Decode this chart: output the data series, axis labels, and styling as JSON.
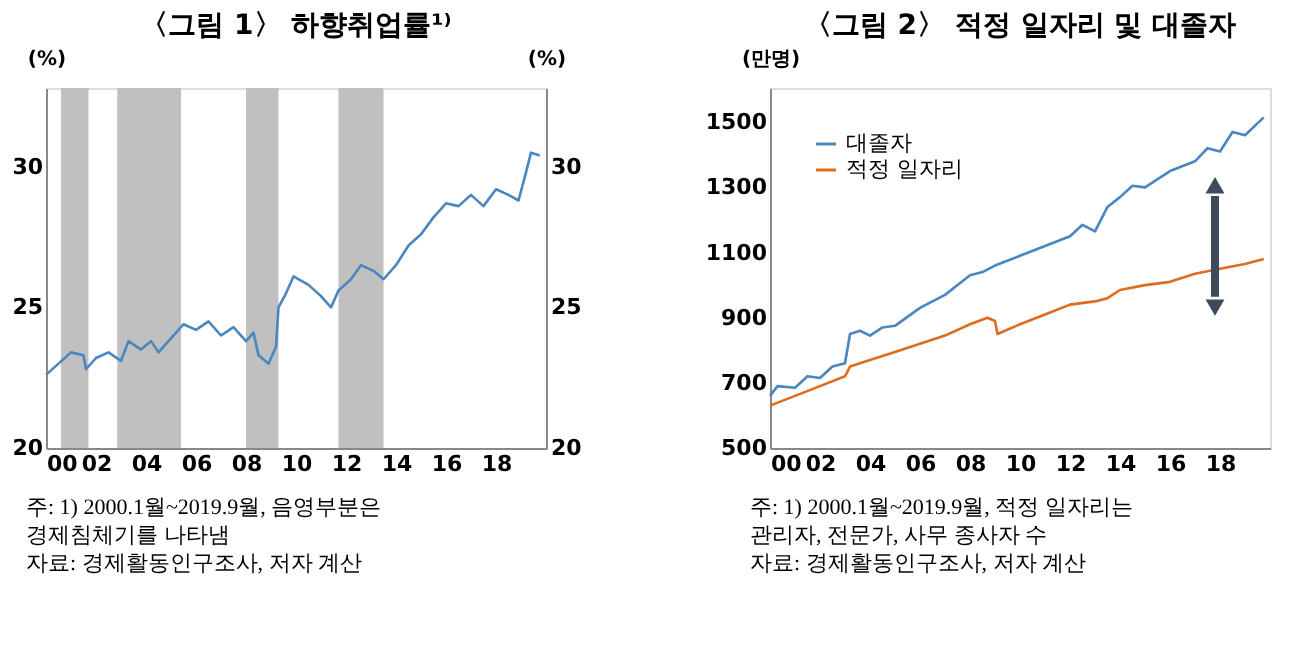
{
  "chart_data": [
    {
      "type": "line",
      "title": "〈그림 1〉 하향취업률¹⁾",
      "ylabel": "(%)",
      "y2label": "(%)",
      "series": [
        {
          "color": "#4a86c0",
          "x": [
            2000,
            2000.5,
            2001,
            2001.5,
            2001.6,
            2002,
            2002.5,
            2003,
            2003.3,
            2003.8,
            2004.2,
            2004.5,
            2005,
            2005.5,
            2006,
            2006.5,
            2007,
            2007.5,
            2008,
            2008.3,
            2008.5,
            2008.9,
            2009.2,
            2009.3,
            2009.6,
            2009.9,
            2010.5,
            2011,
            2011.4,
            2011.7,
            2012.2,
            2012.6,
            2013.1,
            2013.5,
            2014,
            2014.5,
            2015,
            2015.5,
            2016,
            2016.5,
            2017,
            2017.5,
            2018,
            2018.5,
            2018.9,
            2019.2,
            2019.4,
            2019.75
          ],
          "values": [
            22.6,
            23.0,
            23.4,
            23.3,
            22.8,
            23.2,
            23.4,
            23.1,
            23.8,
            23.5,
            23.8,
            23.4,
            23.9,
            24.4,
            24.2,
            24.5,
            24.0,
            24.3,
            23.8,
            24.1,
            23.3,
            23.0,
            23.6,
            25.0,
            25.5,
            26.1,
            25.8,
            25.4,
            25.0,
            25.6,
            26.0,
            26.5,
            26.3,
            26.0,
            26.5,
            27.2,
            27.6,
            28.2,
            28.7,
            28.6,
            29.0,
            28.6,
            29.2,
            29.0,
            28.8,
            29.8,
            30.5,
            30.4
          ]
        }
      ],
      "bands": [
        {
          "axis": "x",
          "from": 2000.6,
          "to": 2001.7,
          "color": "#c0c0c0"
        },
        {
          "axis": "x",
          "from": 2002.85,
          "to": 2005.4,
          "color": "#c0c0c0"
        },
        {
          "axis": "x",
          "from": 2008.0,
          "to": 2009.3,
          "color": "#c0c0c0"
        },
        {
          "axis": "x",
          "from": 2011.7,
          "to": 2013.5,
          "color": "#c0c0c0"
        }
      ],
      "xlim": [
        2000,
        2020
      ],
      "xticks": [
        {
          "value": 2000,
          "label": "00"
        },
        {
          "value": 2002,
          "label": "02"
        },
        {
          "value": 2004,
          "label": "04"
        },
        {
          "value": 2006,
          "label": "06"
        },
        {
          "value": 2008,
          "label": "08"
        },
        {
          "value": 2010,
          "label": "10"
        },
        {
          "value": 2012,
          "label": "12"
        },
        {
          "value": 2014,
          "label": "14"
        },
        {
          "value": 2016,
          "label": "16"
        },
        {
          "value": 2018,
          "label": "18"
        }
      ],
      "ylim": [
        20,
        32.8
      ],
      "yticks": [
        20,
        25,
        30
      ],
      "y2lim": [
        20,
        32.8
      ],
      "y2ticks": [
        20,
        25,
        30
      ],
      "grid": false,
      "legend": false,
      "marker": "none",
      "line_style": "solid",
      "annotations": [
        "주: 1) 2000.1월~2019.9월, 음영부분은 경제침체기를 나타냄",
        "자료: 경제활동인구조사, 저자 계산"
      ]
    },
    {
      "type": "line",
      "title": "〈그림 2〉 적정 일자리 및 대졸자",
      "ylabel": "(만명)",
      "series": [
        {
          "name": "대졸자",
          "color": "#4a86c0",
          "x": [
            2000,
            2000.3,
            2001,
            2001.5,
            2002,
            2002.5,
            2003,
            2003.2,
            2003.6,
            2004,
            2004.5,
            2005,
            2006,
            2007,
            2008,
            2008.5,
            2009,
            2010,
            2011,
            2012,
            2012.5,
            2013,
            2013.5,
            2014,
            2014.5,
            2015,
            2016,
            2017,
            2017.5,
            2018,
            2018.5,
            2019,
            2019.75
          ],
          "values": [
            660,
            690,
            685,
            720,
            715,
            750,
            760,
            850,
            860,
            845,
            870,
            875,
            930,
            970,
            1030,
            1040,
            1060,
            1090,
            1120,
            1150,
            1185,
            1165,
            1240,
            1270,
            1305,
            1300,
            1350,
            1380,
            1420,
            1410,
            1470,
            1460,
            1515
          ]
        },
        {
          "name": "적정 일자리",
          "color": "#e06b1c",
          "x": [
            2000,
            2001,
            2002,
            2003,
            2003.2,
            2004,
            2005,
            2006,
            2007,
            2008,
            2008.7,
            2009,
            2009.1,
            2010,
            2011,
            2012,
            2013,
            2013.5,
            2014,
            2015,
            2016,
            2017,
            2018,
            2019,
            2019.75
          ],
          "values": [
            630,
            660,
            690,
            720,
            750,
            770,
            795,
            820,
            845,
            880,
            900,
            890,
            850,
            880,
            910,
            940,
            950,
            960,
            985,
            1000,
            1010,
            1035,
            1050,
            1065,
            1080
          ]
        }
      ],
      "xlim": [
        2000,
        2020
      ],
      "xticks": [
        {
          "value": 2000,
          "label": "00"
        },
        {
          "value": 2002,
          "label": "02"
        },
        {
          "value": 2004,
          "label": "04"
        },
        {
          "value": 2006,
          "label": "06"
        },
        {
          "value": 2008,
          "label": "08"
        },
        {
          "value": 2010,
          "label": "10"
        },
        {
          "value": 2012,
          "label": "12"
        },
        {
          "value": 2014,
          "label": "14"
        },
        {
          "value": 2016,
          "label": "16"
        },
        {
          "value": 2018,
          "label": "18"
        }
      ],
      "ylim": [
        500,
        1605
      ],
      "yticks": [
        500,
        700,
        900,
        1100,
        1300,
        1500
      ],
      "grid": false,
      "legend": "top left",
      "marker": "none",
      "line_style": "solid",
      "annotations": [
        "주: 1) 2000.1월~2019.9월, 적정 일자리는 관리자, 전문가, 사무 종사자 수",
        "자료: 경제활동인구조사, 저자 계산"
      ]
    }
  ]
}
